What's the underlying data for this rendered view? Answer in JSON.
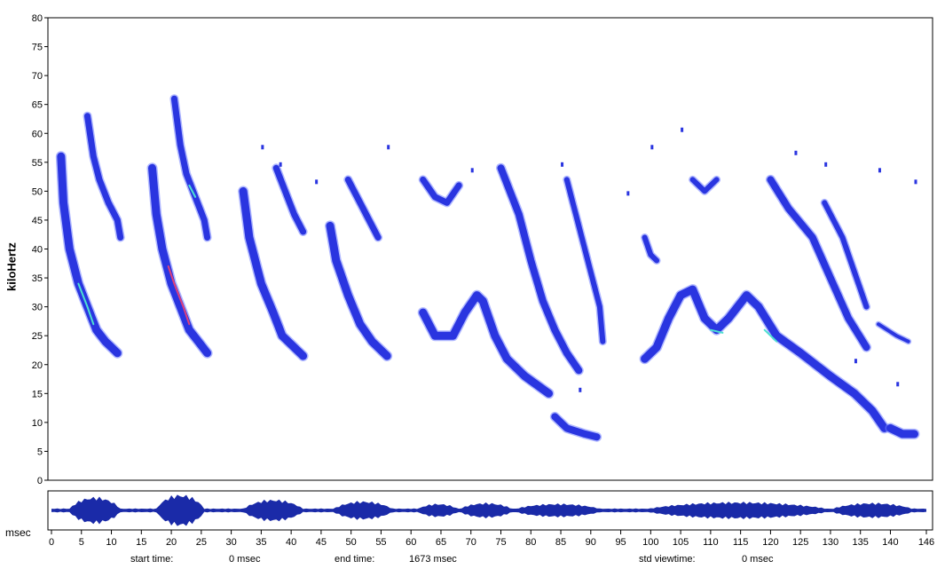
{
  "spectrogram": {
    "ylabel": "kiloHertz",
    "ylim": [
      0,
      80
    ],
    "y_ticks": [
      "0",
      "5",
      "10",
      "15",
      "20",
      "25",
      "30",
      "35",
      "40",
      "45",
      "50",
      "55",
      "60",
      "65",
      "70",
      "75",
      "80"
    ],
    "x_unit_label": "msec",
    "x_ticks": [
      "0",
      "5",
      "10",
      "15",
      "20",
      "25",
      "30",
      "35",
      "40",
      "45",
      "50",
      "55",
      "60",
      "65",
      "70",
      "75",
      "80",
      "85",
      "90",
      "95",
      "100",
      "105",
      "110",
      "115",
      "120",
      "125",
      "130",
      "135",
      "140",
      "146"
    ],
    "colors": {
      "signal": "#2a35e0",
      "signal_edge": "#6f7dff",
      "hot": "#4de0d0",
      "peak": "#e0407a",
      "waveform": "#1a2aa8"
    }
  },
  "footer": {
    "start_label": "start time:",
    "start_value": "0 msec",
    "end_label": "end time:",
    "end_value": "1673 msec",
    "view_label": "std viewtime:",
    "view_value": "0 msec"
  }
}
